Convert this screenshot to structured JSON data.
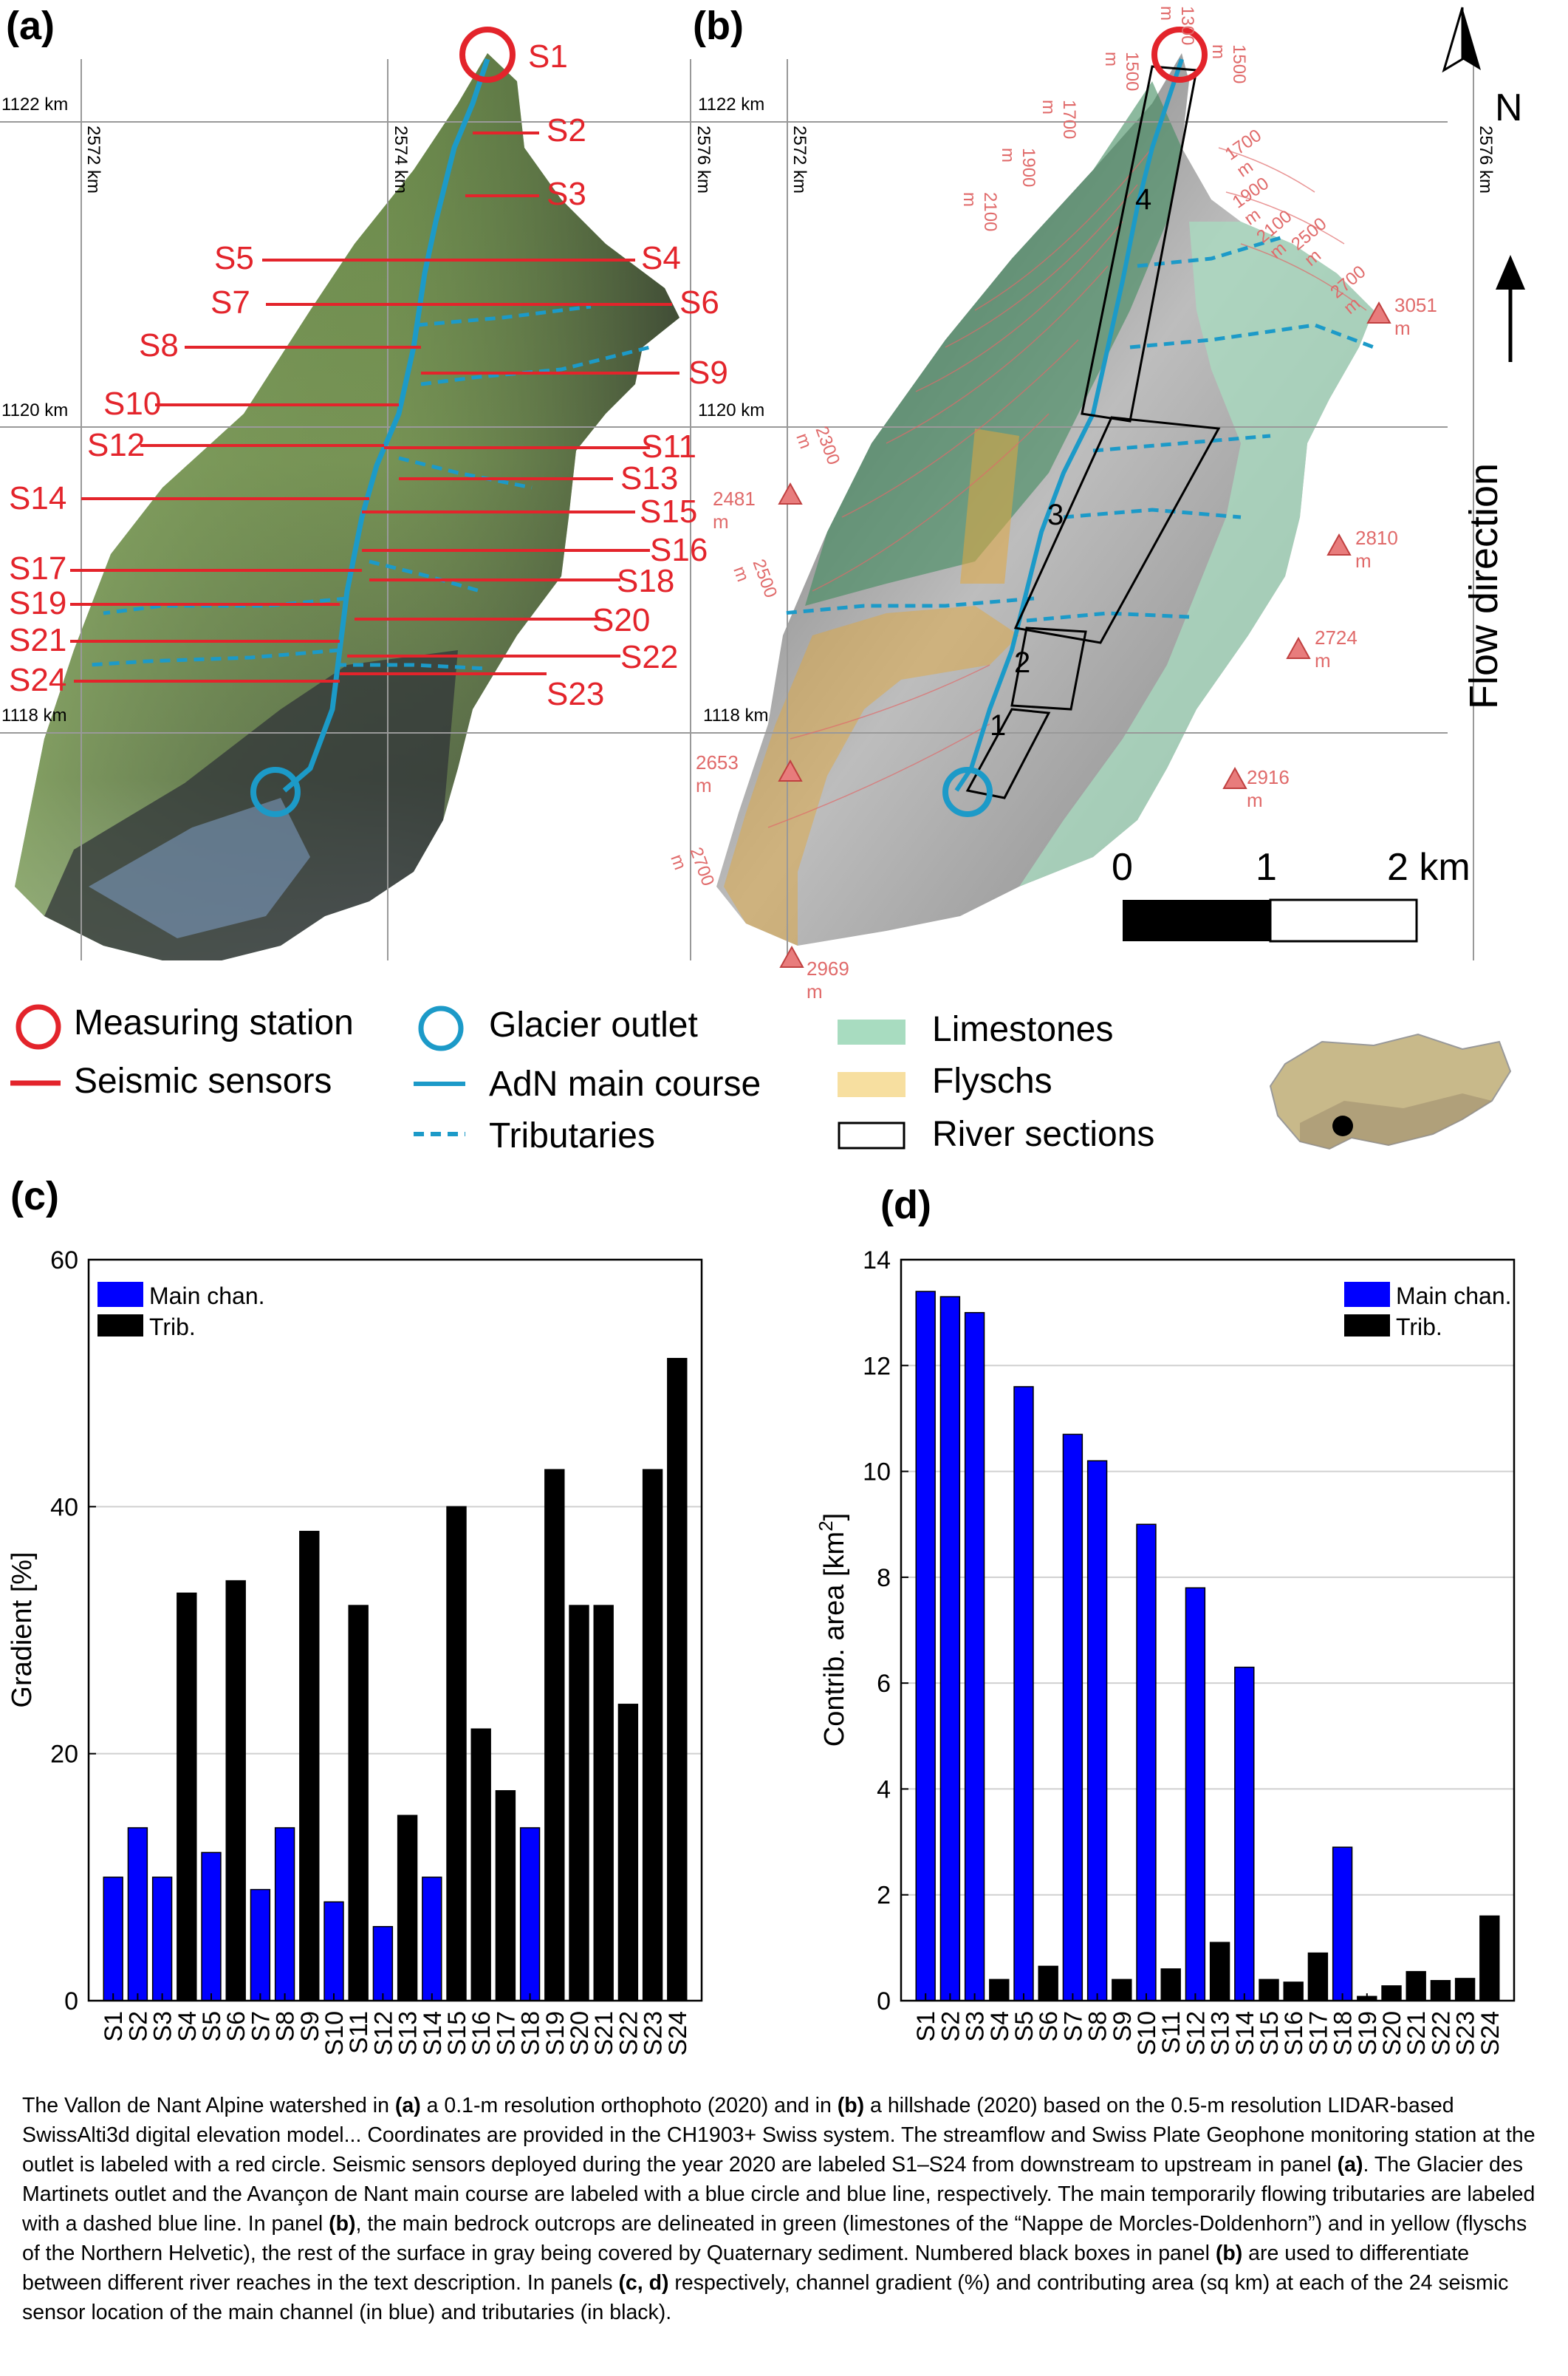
{
  "panel_labels": {
    "a": "(a)",
    "b": "(b)",
    "c": "(c)",
    "d": "(d)"
  },
  "map_a": {
    "coords": {
      "y1122": "1122 km",
      "y1120": "1120 km",
      "y1118": "1118 km",
      "x2572": "2572 km",
      "x2574": "2574 km",
      "x2576": "2576 km"
    },
    "sensors": [
      "S1",
      "S2",
      "S3",
      "S4",
      "S5",
      "S6",
      "S7",
      "S8",
      "S9",
      "S10",
      "S11",
      "S12",
      "S13",
      "S14",
      "S15",
      "S16",
      "S17",
      "S18",
      "S19",
      "S20",
      "S21",
      "S22",
      "S23",
      "S24"
    ]
  },
  "map_b": {
    "coords": {
      "y1122": "1122 km",
      "y1120": "1120 km",
      "y1118": "1118 km",
      "x2572": "2572 km",
      "x2576": "2576 km"
    },
    "contours": [
      "1300 m",
      "1500 m",
      "1500 m",
      "1700 m",
      "1700 m",
      "1900 m",
      "1900 m",
      "2100 m",
      "2100 m",
      "2300 m",
      "2500 m",
      "2500 m",
      "2700 m",
      "2700 m"
    ],
    "peaks": [
      "3051 m",
      "2481 m",
      "2810 m",
      "2724 m",
      "2653 m",
      "2916 m",
      "2969 m"
    ],
    "sections": [
      "1",
      "2",
      "3",
      "4"
    ],
    "north": "N",
    "flow_direction": "Flow direction",
    "scale": {
      "zero": "0",
      "one": "1",
      "two": "2 km"
    }
  },
  "legend": {
    "measuring_station": "Measuring station",
    "seismic_sensors": "Seismic sensors",
    "glacier_outlet": "Glacier outlet",
    "main_course": "AdN main course",
    "tributaries": "Tributaries",
    "limestones": "Limestones",
    "flyschs": "Flyschs",
    "river_sections": "River sections"
  },
  "colors": {
    "red": "#e3242b",
    "blue": "#1c9ac8",
    "main_bar": "#0000ff",
    "trib_bar": "#000000",
    "limestone": "#a8dcc0",
    "flysch": "#f7dfa0"
  },
  "chart_data": [
    {
      "type": "bar",
      "panel": "(c)",
      "categories": [
        "S1",
        "S2",
        "S3",
        "S4",
        "S5",
        "S6",
        "S7",
        "S8",
        "S9",
        "S10",
        "S11",
        "S12",
        "S13",
        "S14",
        "S15",
        "S16",
        "S17",
        "S18",
        "S19",
        "S20",
        "S21",
        "S22",
        "S23",
        "S24"
      ],
      "values": [
        10,
        14,
        10,
        33,
        12,
        34,
        9,
        14,
        38,
        8,
        32,
        6,
        15,
        10,
        40,
        22,
        17,
        14,
        43,
        32,
        32,
        24,
        43,
        52
      ],
      "groups": [
        "main",
        "main",
        "main",
        "trib",
        "main",
        "trib",
        "main",
        "main",
        "trib",
        "main",
        "trib",
        "main",
        "trib",
        "main",
        "trib",
        "trib",
        "trib",
        "main",
        "trib",
        "trib",
        "trib",
        "trib",
        "trib",
        "trib"
      ],
      "series": [
        {
          "name": "Main chan."
        },
        {
          "name": "Trib."
        }
      ],
      "ylabel": "Gradient [%]",
      "yticks": [
        "0",
        "20",
        "40",
        "60"
      ],
      "ylim": [
        0,
        60
      ],
      "grid": true,
      "legend": "top-left"
    },
    {
      "type": "bar",
      "panel": "(d)",
      "categories": [
        "S1",
        "S2",
        "S3",
        "S4",
        "S5",
        "S6",
        "S7",
        "S8",
        "S9",
        "S10",
        "S11",
        "S12",
        "S13",
        "S14",
        "S15",
        "S16",
        "S17",
        "S18",
        "S19",
        "S20",
        "S21",
        "S22",
        "S23",
        "S24"
      ],
      "values": [
        13.4,
        13.3,
        13.0,
        0.4,
        11.6,
        0.65,
        10.7,
        10.2,
        0.4,
        9.0,
        0.6,
        7.8,
        1.1,
        6.3,
        0.4,
        0.35,
        0.9,
        2.9,
        0.08,
        0.28,
        0.55,
        0.38,
        0.42,
        1.6
      ],
      "groups": [
        "main",
        "main",
        "main",
        "trib",
        "main",
        "trib",
        "main",
        "main",
        "trib",
        "main",
        "trib",
        "main",
        "trib",
        "main",
        "trib",
        "trib",
        "trib",
        "main",
        "trib",
        "trib",
        "trib",
        "trib",
        "trib",
        "trib"
      ],
      "series": [
        {
          "name": "Main chan."
        },
        {
          "name": "Trib."
        }
      ],
      "ylabel_main": "Contrib. area [km",
      "ylabel_sup": "2",
      "ylabel_end": "]",
      "yticks": [
        "0",
        "2",
        "4",
        "6",
        "8",
        "10",
        "12",
        "14"
      ],
      "ylim": [
        0,
        14
      ],
      "grid": true,
      "legend": "top-right"
    }
  ],
  "caption": {
    "p1": "The Vallon de Nant Alpine watershed in ",
    "a": "(a)",
    "p2": " a 0.1-m resolution orthophoto (2020) and in ",
    "b": "(b)",
    "p3": " a hillshade (2020) based on the 0.5-m resolution LIDAR-based SwissAlti3d digital elevation model... Coordinates are provided in the CH1903+ Swiss system. The streamflow and Swiss Plate Geophone monitoring station at the outlet is labeled with a red circle. Seismic sensors deployed during the year 2020 are labeled S1–S24 from downstream to upstream in panel ",
    "a2": "(a)",
    "p4": ". The Glacier des Martinets outlet and the Avançon de Nant main course are labeled with a blue circle and blue line, respectively. The main temporarily flowing tributaries are labeled with a dashed blue line. In panel ",
    "b2": "(b)",
    "p5": ", the main bedrock outcrops are delineated in green (limestones of the “Nappe de Morcles-Doldenhorn”) and in yellow (flyschs of the Northern Helvetic), the rest of the surface in gray being covered by Quaternary sediment. Numbered black boxes in panel ",
    "b3": "(b)",
    "p6": " are used to differentiate between different river reaches in the text description. In panels ",
    "cd": "(c, d)",
    "p7": " respectively, channel gradient (%) and contributing area (sq km) at each of the 24 seismic sensor location of the main channel (in blue) and tributaries (in black)."
  }
}
